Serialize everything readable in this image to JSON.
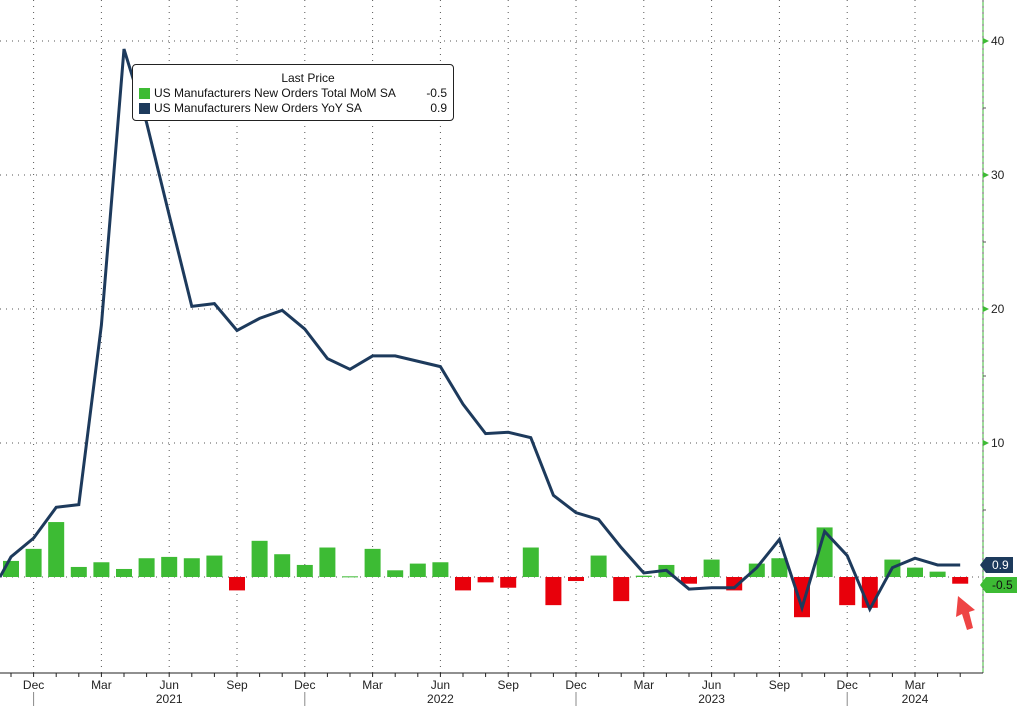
{
  "legend": {
    "title": "Last Price",
    "items": [
      {
        "label": "US Manufacturers New Orders Total MoM SA",
        "value": "-0.5",
        "color": "#3dbb34"
      },
      {
        "label": "US Manufacturers New Orders YoY SA",
        "value": "0.9",
        "color": "#1d3a5c"
      }
    ]
  },
  "tags": {
    "yoy": "0.9",
    "mom": "-0.5"
  },
  "chart_data": {
    "type": "bar+line",
    "months": [
      "Nov 2020",
      "Dec 2020",
      "Jan 2021",
      "Feb 2021",
      "Mar 2021",
      "Apr 2021",
      "May 2021",
      "Jun 2021",
      "Jul 2021",
      "Aug 2021",
      "Sep 2021",
      "Oct 2021",
      "Nov 2021",
      "Dec 2021",
      "Jan 2022",
      "Feb 2022",
      "Mar 2022",
      "Apr 2022",
      "May 2022",
      "Jun 2022",
      "Jul 2022",
      "Aug 2022",
      "Sep 2022",
      "Oct 2022",
      "Nov 2022",
      "Dec 2022",
      "Jan 2023",
      "Feb 2023",
      "Mar 2023",
      "Apr 2023",
      "May 2023",
      "Jun 2023",
      "Jul 2023",
      "Aug 2023",
      "Sep 2023",
      "Oct 2023",
      "Nov 2023",
      "Dec 2023",
      "Jan 2024",
      "Feb 2024",
      "Mar 2024",
      "Apr 2024",
      "May 2024"
    ],
    "series": [
      {
        "name": "US Manufacturers New Orders Total MoM SA",
        "type": "bar",
        "values": [
          1.2,
          2.1,
          4.1,
          0.75,
          1.1,
          0.6,
          1.4,
          1.5,
          1.4,
          1.6,
          -1.0,
          2.7,
          1.7,
          0.9,
          2.2,
          0.05,
          2.1,
          0.5,
          1.0,
          1.1,
          -1.0,
          -0.4,
          -0.8,
          2.2,
          -2.1,
          -0.3,
          1.6,
          -1.8,
          0.1,
          0.9,
          -0.5,
          1.3,
          -1.0,
          1.0,
          1.4,
          -3.0,
          3.7,
          -2.1,
          -2.3,
          1.3,
          0.7,
          0.4,
          -0.5
        ]
      },
      {
        "name": "US Manufacturers New Orders YoY SA",
        "type": "line",
        "values": [
          1.5,
          2.9,
          5.2,
          5.4,
          18.8,
          39.4,
          33.9,
          27.0,
          20.2,
          20.4,
          18.4,
          19.3,
          19.9,
          18.5,
          16.3,
          15.5,
          16.5,
          16.5,
          16.1,
          15.7,
          12.9,
          10.7,
          10.8,
          10.4,
          6.1,
          4.8,
          4.3,
          2.2,
          0.3,
          0.5,
          -0.9,
          -0.8,
          -0.8,
          0.7,
          2.8,
          -2.3,
          3.4,
          1.6,
          -2.4,
          0.7,
          1.4,
          0.9,
          0.9
        ]
      }
    ],
    "positive_color": "#3dbb34",
    "negative_color": "#e8000b",
    "line_color": "#1d3a5c",
    "y_ticks": [
      "10",
      "20",
      "30",
      "40"
    ],
    "ylim": [
      -7,
      43
    ],
    "x_tick_labels": [
      {
        "month": "Dec 2020",
        "label": "Dec"
      },
      {
        "month": "Mar 2021",
        "label": "Mar"
      },
      {
        "month": "Jun 2021",
        "label": "Jun"
      },
      {
        "month": "Sep 2021",
        "label": "Sep"
      },
      {
        "month": "Dec 2021",
        "label": "Dec"
      },
      {
        "month": "Mar 2022",
        "label": "Mar"
      },
      {
        "month": "Jun 2022",
        "label": "Jun"
      },
      {
        "month": "Sep 2022",
        "label": "Sep"
      },
      {
        "month": "Dec 2022",
        "label": "Dec"
      },
      {
        "month": "Mar 2023",
        "label": "Mar"
      },
      {
        "month": "Jun 2023",
        "label": "Jun"
      },
      {
        "month": "Sep 2023",
        "label": "Sep"
      },
      {
        "month": "Dec 2023",
        "label": "Dec"
      },
      {
        "month": "Mar 2024",
        "label": "Mar"
      }
    ],
    "year_labels": [
      {
        "month": "Jun 2021",
        "label": "2021"
      },
      {
        "month": "Jun 2022",
        "label": "2022"
      },
      {
        "month": "Jun 2023",
        "label": "2023"
      },
      {
        "month": "Mar 2024",
        "label": "2024"
      }
    ],
    "grid": true,
    "legend_position": "top-left",
    "annotation": "red arrow pointing to latest bar"
  }
}
